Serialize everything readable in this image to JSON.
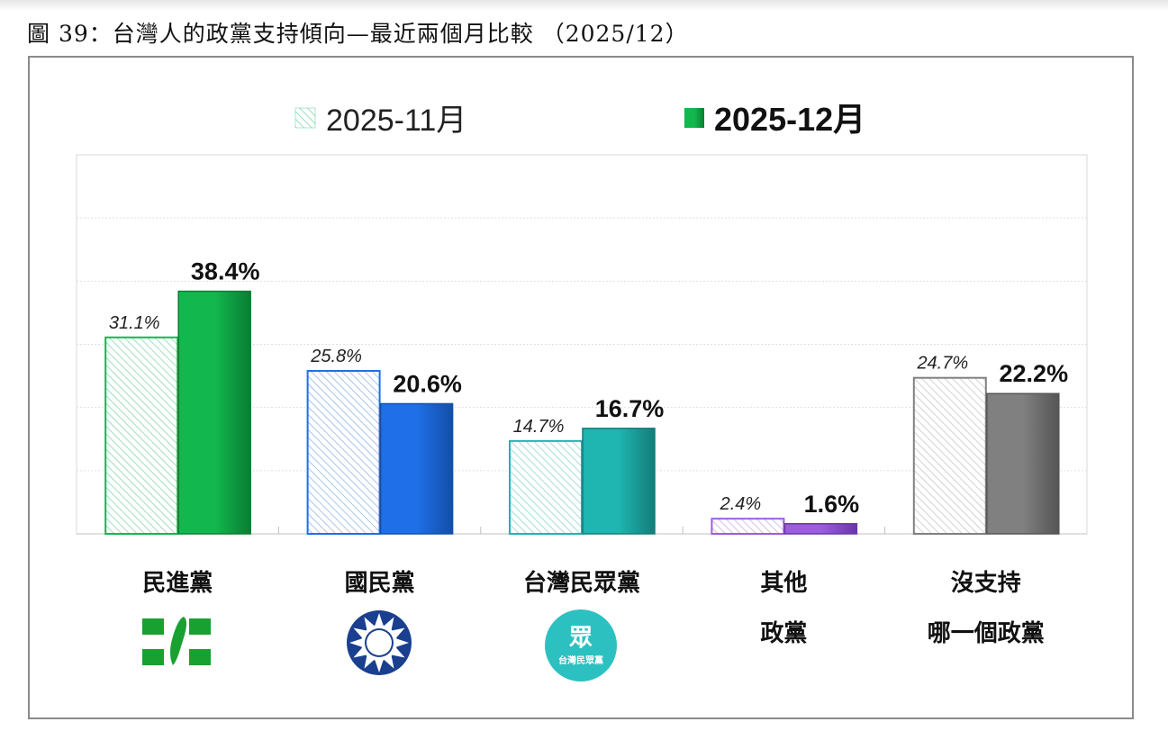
{
  "title": "圖 39：台灣人的政黨支持傾向—最近兩個月比較 （2025/12）",
  "chart_data": {
    "type": "bar",
    "title": "",
    "xlabel": "",
    "ylabel": "",
    "ylim": [
      0,
      60
    ],
    "grid": true,
    "legend_position": "top",
    "categories": [
      {
        "lines": [
          "民進黨"
        ],
        "logo": "dpp-logo"
      },
      {
        "lines": [
          "國民黨"
        ],
        "logo": "kmt-logo"
      },
      {
        "lines": [
          "台灣民眾黨"
        ],
        "logo": "tpp-logo",
        "logo_text": [
          "眾",
          "台灣民眾黨"
        ]
      },
      {
        "lines": [
          "其他",
          "政黨"
        ]
      },
      {
        "lines": [
          "沒支持",
          "哪一個政黨"
        ]
      }
    ],
    "series": [
      {
        "name": "2025-11月",
        "style": "hatched",
        "values": [
          31.1,
          25.8,
          14.7,
          2.4,
          24.7
        ],
        "labels": [
          "31.1%",
          "25.8%",
          "14.7%",
          "2.4%",
          "24.7%"
        ]
      },
      {
        "name": "2025-12月",
        "style": "solid",
        "values": [
          38.4,
          20.6,
          16.7,
          1.6,
          22.2
        ],
        "labels": [
          "38.4%",
          "20.6%",
          "16.7%",
          "1.6%",
          "22.2%"
        ]
      }
    ],
    "colors": {
      "light": [
        "#22b86a",
        "#3d78d8",
        "#23b8a8",
        "#a070e6",
        "#9a9a9a"
      ],
      "solid": [
        "#12b84e",
        "#1f6fe8",
        "#1fb5b0",
        "#9c5de0",
        "#808080"
      ],
      "solid_dark": [
        "#0a7d33",
        "#144ea8",
        "#137d7a",
        "#6a35a8",
        "#555555"
      ],
      "legend_light": "#4fd6a0",
      "legend_solid": "#12a84a"
    }
  }
}
